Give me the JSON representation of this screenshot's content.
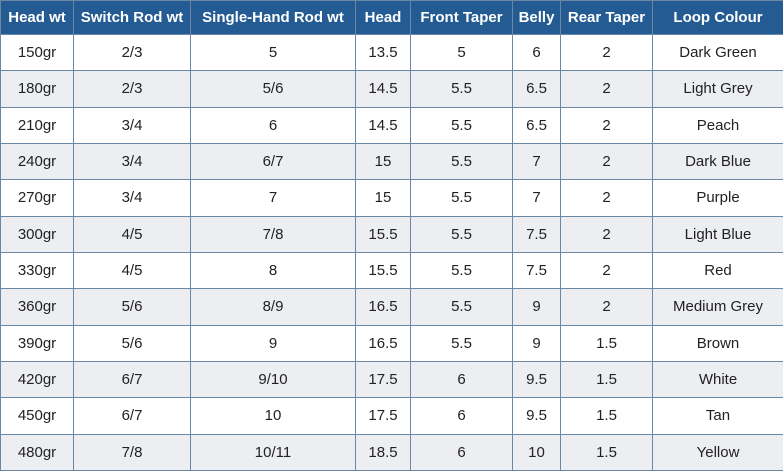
{
  "table": {
    "header": [
      "Head wt",
      "Switch Rod wt",
      "Single-Hand Rod wt",
      "Head",
      "Front Taper",
      "Belly",
      "Rear Taper",
      "Loop Colour"
    ],
    "rows": [
      [
        "150gr",
        "2/3",
        "5",
        "13.5",
        "5",
        "6",
        "2",
        "Dark Green"
      ],
      [
        "180gr",
        "2/3",
        "5/6",
        "14.5",
        "5.5",
        "6.5",
        "2",
        "Light Grey"
      ],
      [
        "210gr",
        "3/4",
        "6",
        "14.5",
        "5.5",
        "6.5",
        "2",
        "Peach"
      ],
      [
        "240gr",
        "3/4",
        "6/7",
        "15",
        "5.5",
        "7",
        "2",
        "Dark Blue"
      ],
      [
        "270gr",
        "3/4",
        "7",
        "15",
        "5.5",
        "7",
        "2",
        "Purple"
      ],
      [
        "300gr",
        "4/5",
        "7/8",
        "15.5",
        "5.5",
        "7.5",
        "2",
        "Light Blue"
      ],
      [
        "330gr",
        "4/5",
        "8",
        "15.5",
        "5.5",
        "7.5",
        "2",
        "Red"
      ],
      [
        "360gr",
        "5/6",
        "8/9",
        "16.5",
        "5.5",
        "9",
        "2",
        "Medium Grey"
      ],
      [
        "390gr",
        "5/6",
        "9",
        "16.5",
        "5.5",
        "9",
        "1.5",
        "Brown"
      ],
      [
        "420gr",
        "6/7",
        "9/10",
        "17.5",
        "6",
        "9.5",
        "1.5",
        "White"
      ],
      [
        "450gr",
        "6/7",
        "10",
        "17.5",
        "6",
        "9.5",
        "1.5",
        "Tan"
      ],
      [
        "480gr",
        "7/8",
        "10/11",
        "18.5",
        "6",
        "10",
        "1.5",
        "Yellow"
      ]
    ]
  }
}
